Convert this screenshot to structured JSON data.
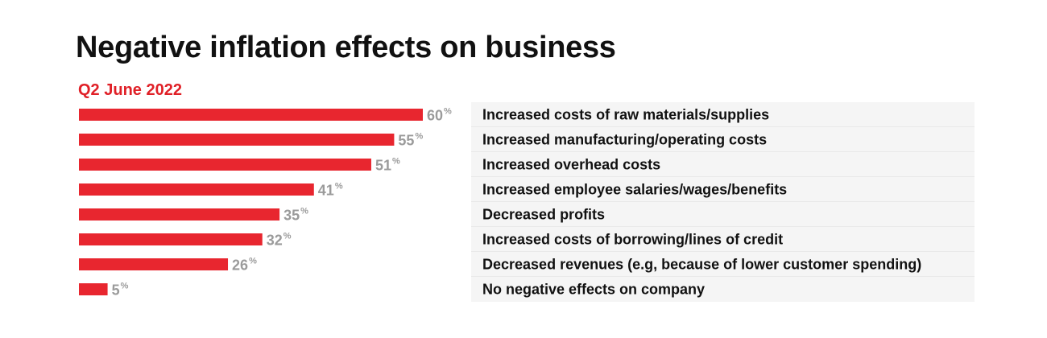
{
  "chart_data": {
    "type": "bar",
    "orientation": "horizontal",
    "title": "Negative inflation effects on business",
    "subtitle": "Q2 June 2022",
    "categories": [
      "Increased costs of raw materials/supplies",
      "Increased manufacturing/operating costs",
      "Increased overhead costs",
      "Increased employee salaries/wages/benefits",
      "Decreased profits",
      "Increased costs of borrowing/lines of credit",
      "Decreased revenues (e.g, because of lower customer spending)",
      "No negative effects on company"
    ],
    "values": [
      60,
      55,
      51,
      41,
      35,
      32,
      26,
      5
    ],
    "value_labels": [
      "60",
      "55",
      "51",
      "41",
      "35",
      "32",
      "26",
      "5"
    ],
    "unit": "%",
    "xlim": [
      0,
      60
    ],
    "grid": false,
    "legend": "none"
  },
  "colors": {
    "bar": "#e8262f",
    "subtitle": "#e02027",
    "value_label": "#9b9b9b",
    "row_background": "#f5f5f5",
    "row_divider": "#e2e2e2"
  }
}
